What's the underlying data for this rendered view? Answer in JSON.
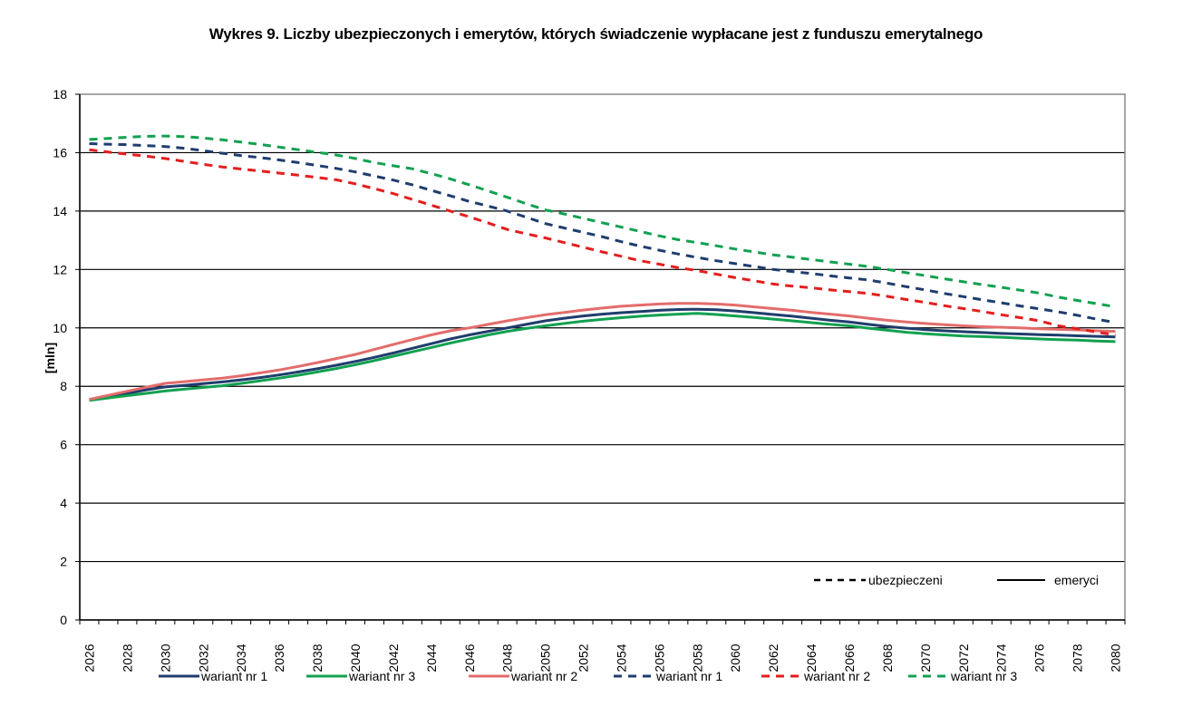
{
  "title": "Wykres 9. Liczby ubezpieczonych i emerytów, których świadczenie wypłacane jest z funduszu emerytalnego",
  "chart_data": {
    "type": "line",
    "title": "Wykres 9. Liczby ubezpieczonych i emerytów, których świadczenie wypłacane jest z funduszu emerytalnego",
    "xlabel": "",
    "ylabel": "[mln]",
    "ylim": [
      0,
      18
    ],
    "yticks": [
      0,
      2,
      4,
      6,
      8,
      10,
      12,
      14,
      16,
      18
    ],
    "grid": "horizontal",
    "legend_position": "bottom",
    "x": [
      2026,
      2027,
      2028,
      2029,
      2030,
      2031,
      2032,
      2033,
      2034,
      2035,
      2036,
      2037,
      2038,
      2039,
      2040,
      2041,
      2042,
      2043,
      2044,
      2045,
      2046,
      2047,
      2048,
      2049,
      2050,
      2051,
      2052,
      2053,
      2054,
      2055,
      2056,
      2057,
      2058,
      2059,
      2060,
      2061,
      2062,
      2063,
      2064,
      2065,
      2066,
      2067,
      2068,
      2069,
      2070,
      2071,
      2072,
      2073,
      2074,
      2075,
      2076,
      2077,
      2078,
      2079,
      2080
    ],
    "xtick_labels": [
      "2026",
      "2028",
      "2030",
      "2032",
      "2034",
      "2036",
      "2038",
      "2040",
      "2042",
      "2044",
      "2046",
      "2048",
      "2050",
      "2052",
      "2054",
      "2056",
      "2058",
      "2060",
      "2062",
      "2064",
      "2066",
      "2068",
      "2070",
      "2072",
      "2074",
      "2076",
      "2078",
      "2080"
    ],
    "series": [
      {
        "name": "wariant nr 1",
        "group": "emeryci",
        "style": "solid",
        "color": "#1F3D6D",
        "values": [
          7.53,
          7.64,
          7.76,
          7.88,
          7.98,
          8.03,
          8.09,
          8.15,
          8.22,
          8.3,
          8.39,
          8.49,
          8.6,
          8.72,
          8.85,
          8.99,
          9.14,
          9.3,
          9.46,
          9.62,
          9.76,
          9.88,
          10.0,
          10.12,
          10.24,
          10.33,
          10.41,
          10.47,
          10.52,
          10.56,
          10.6,
          10.63,
          10.64,
          10.62,
          10.58,
          10.52,
          10.46,
          10.4,
          10.33,
          10.26,
          10.2,
          10.12,
          10.05,
          9.99,
          9.94,
          9.9,
          9.87,
          9.84,
          9.81,
          9.79,
          9.77,
          9.75,
          9.73,
          9.71,
          9.69
        ]
      },
      {
        "name": "wariant nr 3",
        "group": "emeryci",
        "style": "solid",
        "color": "#12A150",
        "values": [
          7.52,
          7.6,
          7.68,
          7.76,
          7.84,
          7.9,
          7.96,
          8.02,
          8.1,
          8.19,
          8.28,
          8.38,
          8.49,
          8.61,
          8.74,
          8.88,
          9.03,
          9.18,
          9.33,
          9.48,
          9.62,
          9.76,
          9.88,
          9.98,
          10.07,
          10.15,
          10.23,
          10.29,
          10.35,
          10.4,
          10.44,
          10.47,
          10.5,
          10.46,
          10.41,
          10.36,
          10.3,
          10.24,
          10.18,
          10.12,
          10.07,
          9.99,
          9.92,
          9.85,
          9.8,
          9.76,
          9.72,
          9.7,
          9.68,
          9.65,
          9.62,
          9.6,
          9.58,
          9.55,
          9.53
        ]
      },
      {
        "name": "wariant nr 2",
        "group": "emeryci",
        "style": "solid",
        "color": "#E46C6C",
        "values": [
          7.55,
          7.69,
          7.83,
          7.97,
          8.1,
          8.16,
          8.22,
          8.28,
          8.36,
          8.46,
          8.56,
          8.68,
          8.81,
          8.95,
          9.09,
          9.26,
          9.43,
          9.6,
          9.76,
          9.9,
          10.0,
          10.12,
          10.24,
          10.35,
          10.45,
          10.53,
          10.61,
          10.68,
          10.74,
          10.78,
          10.82,
          10.84,
          10.84,
          10.82,
          10.78,
          10.72,
          10.66,
          10.6,
          10.53,
          10.47,
          10.41,
          10.33,
          10.26,
          10.2,
          10.15,
          10.11,
          10.07,
          10.04,
          10.02,
          10.0,
          9.97,
          9.95,
          9.93,
          9.9,
          9.88
        ]
      },
      {
        "name": "wariant nr 1",
        "group": "ubezpieczeni",
        "style": "dashed",
        "color": "#1F3D6D",
        "values": [
          16.31,
          16.29,
          16.27,
          16.24,
          16.21,
          16.15,
          16.07,
          15.98,
          15.9,
          15.83,
          15.75,
          15.66,
          15.56,
          15.46,
          15.34,
          15.2,
          15.06,
          14.9,
          14.71,
          14.52,
          14.33,
          14.17,
          14.0,
          13.79,
          13.57,
          13.42,
          13.27,
          13.12,
          12.95,
          12.8,
          12.66,
          12.53,
          12.41,
          12.3,
          12.2,
          12.1,
          12.0,
          11.93,
          11.86,
          11.78,
          11.71,
          11.64,
          11.53,
          11.41,
          11.3,
          11.18,
          11.07,
          10.96,
          10.86,
          10.75,
          10.65,
          10.55,
          10.43,
          10.3,
          10.18
        ]
      },
      {
        "name": "wariant nr 2",
        "group": "ubezpieczeni",
        "style": "dashed",
        "color": "#E41E1E",
        "values": [
          16.1,
          16.02,
          15.95,
          15.88,
          15.8,
          15.7,
          15.6,
          15.51,
          15.44,
          15.37,
          15.3,
          15.23,
          15.15,
          15.07,
          14.93,
          14.77,
          14.6,
          14.4,
          14.2,
          14.0,
          13.8,
          13.59,
          13.37,
          13.22,
          13.08,
          12.92,
          12.76,
          12.6,
          12.45,
          12.3,
          12.18,
          12.06,
          11.96,
          11.84,
          11.72,
          11.61,
          11.5,
          11.43,
          11.37,
          11.3,
          11.24,
          11.18,
          11.08,
          10.97,
          10.87,
          10.76,
          10.66,
          10.56,
          10.45,
          10.35,
          10.24,
          10.07,
          9.97,
          9.86,
          9.75
        ]
      },
      {
        "name": "wariant nr 3",
        "group": "ubezpieczeni",
        "style": "dashed",
        "color": "#12A150",
        "values": [
          16.45,
          16.49,
          16.53,
          16.56,
          16.57,
          16.55,
          16.5,
          16.44,
          16.36,
          16.28,
          16.19,
          16.1,
          16.01,
          15.92,
          15.8,
          15.66,
          15.55,
          15.45,
          15.28,
          15.1,
          14.9,
          14.69,
          14.47,
          14.25,
          14.04,
          13.9,
          13.75,
          13.6,
          13.45,
          13.3,
          13.15,
          13.02,
          12.92,
          12.81,
          12.7,
          12.6,
          12.5,
          12.42,
          12.34,
          12.26,
          12.18,
          12.1,
          12.0,
          11.89,
          11.79,
          11.68,
          11.58,
          11.48,
          11.39,
          11.29,
          11.19,
          11.05,
          10.94,
          10.83,
          10.72
        ]
      }
    ]
  },
  "axis": {
    "ylabel": "[mln]",
    "yticks": [
      "0",
      "2",
      "4",
      "6",
      "8",
      "10",
      "12",
      "14",
      "16",
      "18"
    ]
  },
  "legend_inner": {
    "dashed_label": "ubezpieczeni",
    "solid_label": "emeryci"
  },
  "legend_bottom": [
    {
      "label": "wariant nr 1",
      "style": "solid",
      "color": "#1F3D6D"
    },
    {
      "label": "wariant nr 3",
      "style": "solid",
      "color": "#12A150"
    },
    {
      "label": "wariant nr 2",
      "style": "solid",
      "color": "#E46C6C"
    },
    {
      "label": "wariant nr 1",
      "style": "dashed",
      "color": "#1F3D6D"
    },
    {
      "label": "wariant nr 2",
      "style": "dashed",
      "color": "#E41E1E"
    },
    {
      "label": "wariant nr 3",
      "style": "dashed",
      "color": "#12A150"
    }
  ]
}
